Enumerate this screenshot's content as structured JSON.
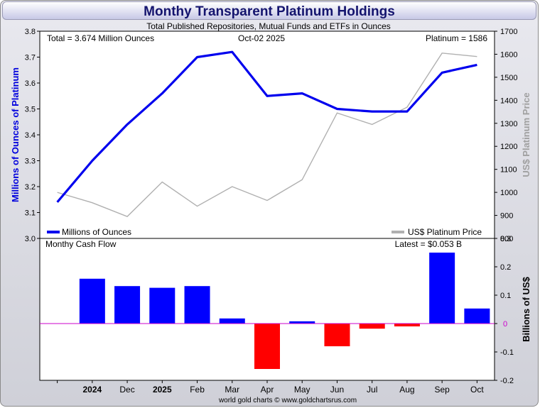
{
  "title": "Monthy Transparent Platinum Holdings",
  "subtitle": "Total Published Repositories, Mutual Funds and ETFs in Ounces",
  "annotations": {
    "total": "Total = 3.674 Million Ounces",
    "date": "Oct-02  2025",
    "price": "Platinum = 1586",
    "cashflow_label": "Monthy Cash Flow",
    "latest": "Latest = $0.053 B",
    "footer": "world gold charts © www.goldchartsrus.com"
  },
  "colors": {
    "holdings": "#0000ee",
    "price": "#b0b0b0",
    "positive": "#0000ff",
    "negative": "#ff0000",
    "zero_line": "#cc00cc",
    "title": "#14146e"
  },
  "chart_data": [
    {
      "type": "line",
      "title": "Monthy Transparent Platinum Holdings",
      "subtitle": "Total Published Repositories, Mutual Funds and ETFs in Ounces",
      "categories": [
        "",
        "2024",
        "Dec",
        "2025",
        "Feb",
        "Mar",
        "Apr",
        "May",
        "Jun",
        "Jul",
        "Aug",
        "Sep",
        "Oct"
      ],
      "series": [
        {
          "name": "Millions of Ounces",
          "axis": "left",
          "values": [
            3.14,
            3.3,
            3.44,
            3.56,
            3.7,
            3.72,
            3.55,
            3.56,
            3.5,
            3.49,
            3.49,
            3.64,
            3.67
          ]
        },
        {
          "name": "US$ Platinum Price",
          "axis": "right",
          "values": [
            1000,
            955,
            895,
            1045,
            940,
            1025,
            965,
            1055,
            1345,
            1295,
            1370,
            1605,
            1590
          ]
        }
      ],
      "ylabel": "Millions of Ounces of Platinum",
      "ylim": [
        3.0,
        3.8
      ],
      "yticks": [
        "3.0",
        "3.1",
        "3.2",
        "3.3",
        "3.4",
        "3.5",
        "3.6",
        "3.7",
        "3.8"
      ],
      "y2label": "US$ Platinum Price",
      "y2lim": [
        800,
        1700
      ],
      "y2ticks": [
        "800",
        "900",
        "1000",
        "1100",
        "1200",
        "1300",
        "1400",
        "1500",
        "1600",
        "1700"
      ],
      "legend": [
        {
          "label": "Millions of Ounces",
          "placement": "bottom-left"
        },
        {
          "label": "US$ Platinum Price",
          "placement": "bottom-right"
        }
      ]
    },
    {
      "type": "bar",
      "title": "Monthy Cash Flow",
      "categories": [
        "",
        "2024",
        "Dec",
        "2025",
        "Feb",
        "Mar",
        "Apr",
        "May",
        "Jun",
        "Jul",
        "Aug",
        "Sep",
        "Oct"
      ],
      "xticklabels": [
        "",
        "2024",
        "Dec",
        "2025",
        "Feb",
        "Mar",
        "Apr",
        "May",
        "Jun",
        "Jul",
        "Aug",
        "Sep",
        "Oct"
      ],
      "values": [
        null,
        0.158,
        0.132,
        0.126,
        0.132,
        0.018,
        -0.16,
        0.008,
        -0.08,
        -0.018,
        -0.01,
        0.25,
        0.053
      ],
      "ylabel": "Billions of US$",
      "ylim": [
        -0.2,
        0.3
      ],
      "yticks": [
        "-0.2",
        "-0.1",
        "0",
        "0.1",
        "0.2",
        "0.3"
      ]
    }
  ]
}
